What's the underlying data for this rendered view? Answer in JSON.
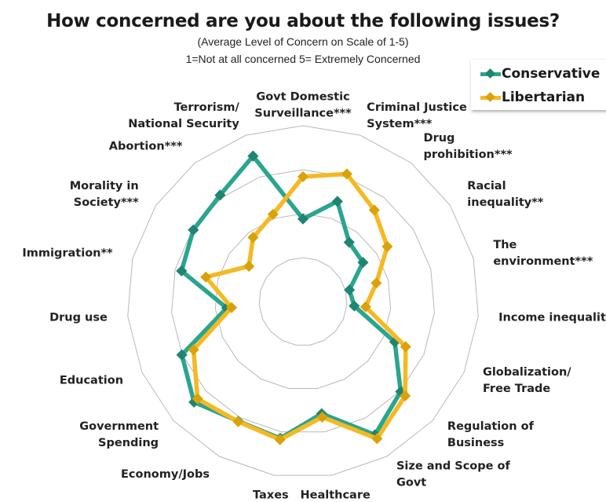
{
  "chart_data": {
    "type": "radar",
    "title": "How concerned are you about the following issues?",
    "subtitle": "(Average Level of Concern on Scale of 1-5)",
    "subtitle2": "1=Not at all concerned 5= Extremely Concerned",
    "rlim": [
      1,
      5
    ],
    "ring_values": [
      2,
      3,
      4,
      5
    ],
    "legend_position": "top-right",
    "categories": [
      [
        "Govt Domestic",
        "Surveillance***"
      ],
      [
        "Criminal Justice",
        "System***"
      ],
      [
        "Drug",
        "prohibition***"
      ],
      [
        "Racial",
        "inequality**"
      ],
      [
        "The",
        "environment***"
      ],
      [
        "Income inequality"
      ],
      [
        "Globalization/",
        "Free Trade"
      ],
      [
        "Regulation of",
        "Business"
      ],
      [
        "Size and Scope of",
        "Govt"
      ],
      [
        "Healthcare"
      ],
      [
        "Taxes"
      ],
      [
        "Economy/Jobs"
      ],
      [
        "Government",
        "Spending"
      ],
      [
        "Education"
      ],
      [
        "Drug use"
      ],
      [
        "Immigration**"
      ],
      [
        "Morality in",
        "Society***"
      ],
      [
        "Abortion***"
      ],
      [
        "Terrorism/",
        "National Security"
      ]
    ],
    "series": [
      {
        "name": "Conservative",
        "color": "#2aa58f",
        "marker_color": "#1f8570",
        "values": [
          2.88,
          3.41,
          2.71,
          2.63,
          2.09,
          2.17,
          3.28,
          4.02,
          4.44,
          3.58,
          4.15,
          4.09,
          4.37,
          4.01,
          2.74,
          3.85,
          3.98,
          4.07,
          4.5
        ]
      },
      {
        "name": "Libertarian",
        "color": "#f5b922",
        "marker_color": "#d9a20a",
        "values": [
          3.84,
          4.07,
          3.64,
          3.29,
          2.72,
          2.43,
          3.55,
          4.16,
          4.54,
          3.66,
          4.18,
          4.1,
          4.26,
          3.72,
          2.63,
          3.28,
          2.47,
          2.85,
          3.1
        ]
      }
    ]
  }
}
